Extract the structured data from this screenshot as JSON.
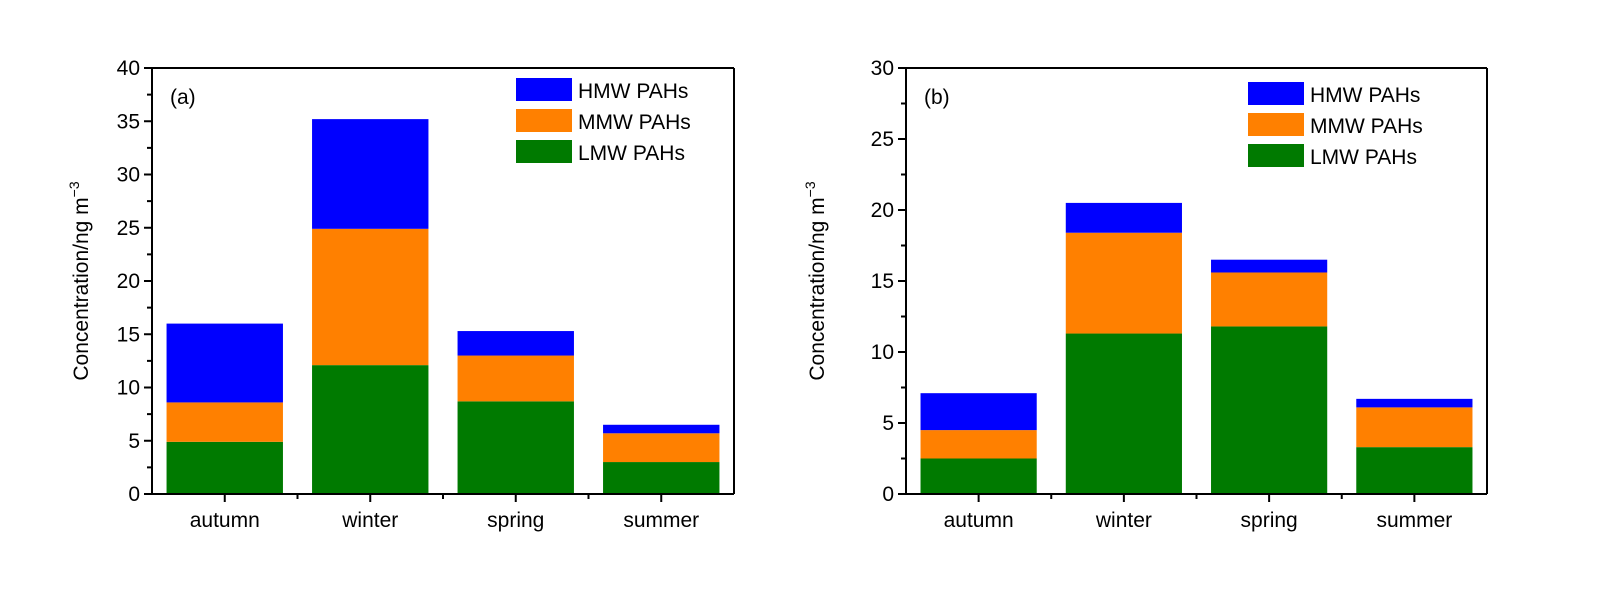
{
  "chart_data": [
    {
      "type": "bar",
      "stacked": true,
      "panel_label": "(a)",
      "title": "",
      "xlabel": "",
      "ylabel": "Concentration/ng m",
      "ylabel_superscript": "−3",
      "ylim": [
        0,
        40
      ],
      "yticks": [
        0,
        5,
        10,
        15,
        20,
        25,
        30,
        35,
        40
      ],
      "grid": false,
      "legend_position": "top-right",
      "categories": [
        "autumn",
        "winter",
        "spring",
        "summer"
      ],
      "series": [
        {
          "name": "LMW PAHs",
          "color": "#007a00",
          "values": [
            4.9,
            12.1,
            8.7,
            3.0
          ]
        },
        {
          "name": "MMW PAHs",
          "color": "#ff8000",
          "values": [
            3.7,
            12.8,
            4.3,
            2.7
          ]
        },
        {
          "name": "HMW PAHs",
          "color": "#0000ff",
          "values": [
            7.4,
            10.3,
            2.3,
            0.8
          ]
        }
      ],
      "totals": [
        16.0,
        35.2,
        15.3,
        6.5
      ]
    },
    {
      "type": "bar",
      "stacked": true,
      "panel_label": "(b)",
      "title": "",
      "xlabel": "",
      "ylabel": "Concentration/ng m",
      "ylabel_superscript": "−3",
      "ylim": [
        0,
        30
      ],
      "yticks": [
        0,
        5,
        10,
        15,
        20,
        25,
        30
      ],
      "grid": false,
      "legend_position": "top-right",
      "categories": [
        "autumn",
        "winter",
        "spring",
        "summer"
      ],
      "series": [
        {
          "name": "LMW PAHs",
          "color": "#007a00",
          "values": [
            2.5,
            11.3,
            11.8,
            3.3
          ]
        },
        {
          "name": "MMW PAHs",
          "color": "#ff8000",
          "values": [
            2.0,
            7.1,
            3.8,
            2.8
          ]
        },
        {
          "name": "HMW PAHs",
          "color": "#0000ff",
          "values": [
            2.6,
            2.1,
            0.9,
            0.6
          ]
        }
      ],
      "totals": [
        7.1,
        20.5,
        16.5,
        6.7
      ]
    }
  ],
  "legend_order": [
    "HMW PAHs",
    "MMW PAHs",
    "LMW PAHs"
  ]
}
